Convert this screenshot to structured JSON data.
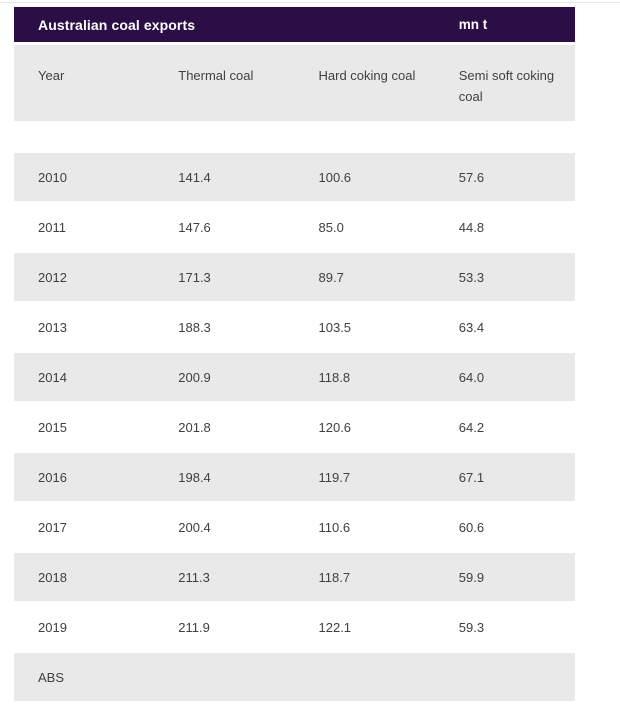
{
  "widget": {
    "title": "Australian coal exports",
    "units_label": "mn t",
    "columns": [
      "Year",
      "Thermal coal",
      "Hard coking coal",
      "Semi soft coking coal"
    ],
    "rows": [
      [
        "2010",
        "141.4",
        "100.6",
        "57.6"
      ],
      [
        "2011",
        "147.6",
        "85.0",
        "44.8"
      ],
      [
        "2012",
        "171.3",
        "89.7",
        "53.3"
      ],
      [
        "2013",
        "188.3",
        "103.5",
        "63.4"
      ],
      [
        "2014",
        "200.9",
        "118.8",
        "64.0"
      ],
      [
        "2015",
        "201.8",
        "120.6",
        "64.2"
      ],
      [
        "2016",
        "198.4",
        "119.7",
        "67.1"
      ],
      [
        "2017",
        "200.4",
        "110.6",
        "60.6"
      ],
      [
        "2018",
        "211.3",
        "118.7",
        "59.9"
      ],
      [
        "2019",
        "211.9",
        "122.1",
        "59.3"
      ]
    ],
    "source": "ABS"
  },
  "colors": {
    "header_bg": "#2c0e47",
    "row_alt_bg": "#e9e9e9",
    "text": "#404040",
    "title_text": "#ffffff"
  },
  "chart_data": {
    "type": "table",
    "title": "Australian coal exports",
    "units": "mn t",
    "categories": [
      "2010",
      "2011",
      "2012",
      "2013",
      "2014",
      "2015",
      "2016",
      "2017",
      "2018",
      "2019"
    ],
    "series": [
      {
        "name": "Thermal coal",
        "values": [
          141.4,
          147.6,
          171.3,
          188.3,
          200.9,
          201.8,
          198.4,
          200.4,
          211.3,
          211.9
        ]
      },
      {
        "name": "Hard coking coal",
        "values": [
          100.6,
          85.0,
          89.7,
          103.5,
          118.8,
          120.6,
          119.7,
          110.6,
          118.7,
          122.1
        ]
      },
      {
        "name": "Semi soft coking coal",
        "values": [
          57.6,
          44.8,
          53.3,
          63.4,
          64.0,
          64.2,
          67.1,
          60.6,
          59.9,
          59.3
        ]
      }
    ],
    "source": "ABS",
    "layout": {
      "header_fill": "#2c0e47",
      "alternating_row_fill": "#e9e9e9",
      "grid": "off"
    }
  }
}
